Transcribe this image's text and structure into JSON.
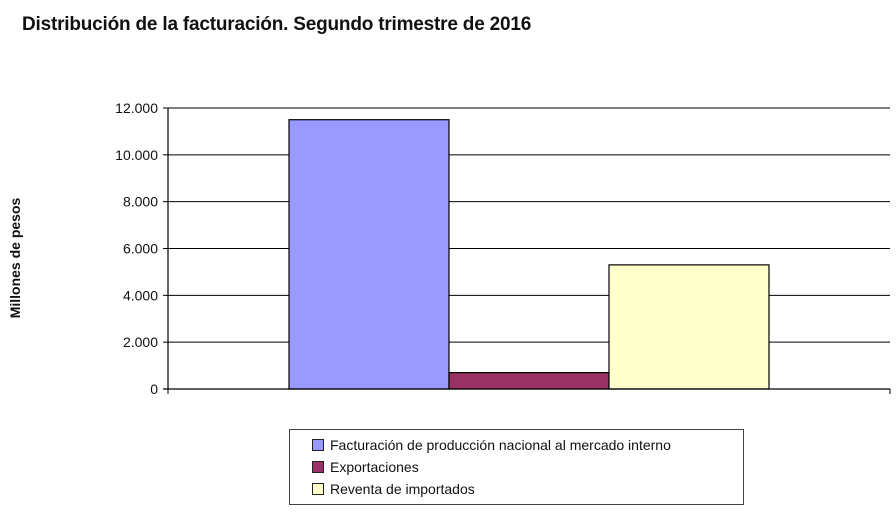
{
  "chart_data": {
    "type": "bar",
    "title": "Distribución de la facturación. Segundo trimestre de 2016",
    "ylabel": "Millones de pesos",
    "xlabel": "",
    "ylim": [
      0,
      12000
    ],
    "yticks": [
      "0",
      "2.000",
      "4.000",
      "6.000",
      "8.000",
      "10.000",
      "12.000"
    ],
    "ytick_values": [
      0,
      2000,
      4000,
      6000,
      8000,
      10000,
      12000
    ],
    "grid": true,
    "legend_position": "bottom",
    "series": [
      {
        "name": "Facturación de producción nacional al mercado interno",
        "value": 11500,
        "color": "#9999ff"
      },
      {
        "name": "Exportaciones",
        "value": 700,
        "color": "#993366"
      },
      {
        "name": "Reventa de importados",
        "value": 5300,
        "color": "#ffffcc"
      }
    ]
  }
}
